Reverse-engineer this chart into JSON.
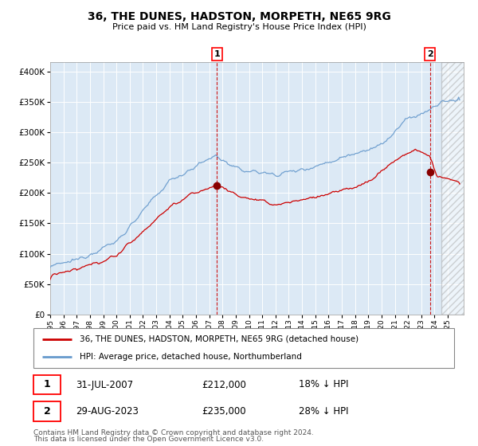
{
  "title": "36, THE DUNES, HADSTON, MORPETH, NE65 9RG",
  "subtitle": "Price paid vs. HM Land Registry's House Price Index (HPI)",
  "ytick_values": [
    0,
    50000,
    100000,
    150000,
    200000,
    250000,
    300000,
    350000,
    400000
  ],
  "ylim": [
    0,
    415000
  ],
  "xlim_start": 1995.0,
  "xlim_end": 2026.0,
  "hatch_start": 2024.5,
  "plot_bg_color": "#dce9f5",
  "hpi_color": "#6699cc",
  "price_color": "#cc0000",
  "marker1_date": 2007.58,
  "marker1_price": 212000,
  "marker2_date": 2023.66,
  "marker2_price": 235000,
  "marker1_label": "31-JUL-2007",
  "marker2_label": "29-AUG-2023",
  "marker1_hpi_pct": "18% ↓ HPI",
  "marker2_hpi_pct": "28% ↓ HPI",
  "legend_line1": "36, THE DUNES, HADSTON, MORPETH, NE65 9RG (detached house)",
  "legend_line2": "HPI: Average price, detached house, Northumberland",
  "footnote1": "Contains HM Land Registry data © Crown copyright and database right 2024.",
  "footnote2": "This data is licensed under the Open Government Licence v3.0.",
  "xtick_years": [
    1995,
    1996,
    1997,
    1998,
    1999,
    2000,
    2001,
    2002,
    2003,
    2004,
    2005,
    2006,
    2007,
    2008,
    2009,
    2010,
    2011,
    2012,
    2013,
    2014,
    2015,
    2016,
    2017,
    2018,
    2019,
    2020,
    2021,
    2022,
    2023,
    2024,
    2025
  ]
}
